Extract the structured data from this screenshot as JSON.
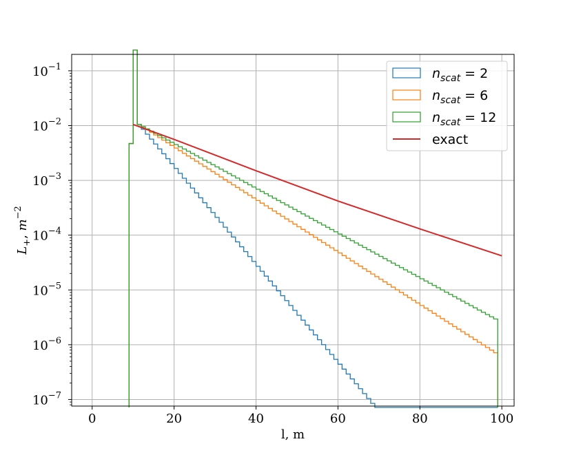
{
  "chart_data": {
    "type": "line",
    "subtype": "step-histogram",
    "title": "",
    "xlabel": "l, m",
    "ylabel": "L+, m−2",
    "ylabel_parts": {
      "main": "L",
      "sub": "+",
      "rest": ", m",
      "sup": "−2"
    },
    "xlim": [
      -5,
      103
    ],
    "ylim_log10": [
      -7.12,
      -0.7
    ],
    "yscale": "log",
    "grid": true,
    "x_ticks": [
      0,
      20,
      40,
      60,
      80,
      100
    ],
    "x_tick_labels": [
      "0",
      "20",
      "40",
      "60",
      "80",
      "100"
    ],
    "y_ticks": [
      0.1,
      0.01,
      0.001,
      0.0001,
      1e-05,
      1e-06,
      1e-07
    ],
    "y_tick_labels": [
      {
        "base": "10",
        "exp": "−1"
      },
      {
        "base": "10",
        "exp": "−2"
      },
      {
        "base": "10",
        "exp": "−3"
      },
      {
        "base": "10",
        "exp": "−4"
      },
      {
        "base": "10",
        "exp": "−5"
      },
      {
        "base": "10",
        "exp": "−6"
      },
      {
        "base": "10",
        "exp": "−7"
      }
    ],
    "legend_placement": "upper-right",
    "bins": {
      "start": 9.0,
      "end": 100.0,
      "width": 1.0
    },
    "series": [
      {
        "name": "n_scat = 2",
        "legend": {
          "var": "n",
          "sub": "scat",
          "eq": " = 2"
        },
        "color": "#1f77b4",
        "style": "step",
        "spike": [
          {
            "x0": 9,
            "x1": 10,
            "y": 0.0047
          },
          {
            "x0": 10,
            "x1": 11,
            "y": 0.24
          }
        ],
        "start_y": 0.0105,
        "decay_per_m": 0.2057,
        "tail_end_x": 99
      },
      {
        "name": "n_scat = 6",
        "legend": {
          "var": "n",
          "sub": "scat",
          "eq": " = 6"
        },
        "color": "#ff7f0e",
        "style": "step",
        "spike": [
          {
            "x0": 9,
            "x1": 10,
            "y": 0.0047
          },
          {
            "x0": 10,
            "x1": 11,
            "y": 0.24
          }
        ],
        "start_y": 0.0105,
        "decay_per_m": 0.1103,
        "tail_end_x": 99
      },
      {
        "name": "n_scat = 12",
        "legend": {
          "var": "n",
          "sub": "scat",
          "eq": " = 12"
        },
        "color": "#2ca02c",
        "style": "step",
        "spike": [
          {
            "x0": 9,
            "x1": 10,
            "y": 0.0047
          },
          {
            "x0": 10,
            "x1": 11,
            "y": 0.24
          }
        ],
        "start_y": 0.0105,
        "decay_per_m": 0.094,
        "tail_end_x": 99
      },
      {
        "name": "exact",
        "legend": {
          "text": "exact"
        },
        "color": "#d62728",
        "style": "line",
        "x": [
          10,
          20,
          40,
          60,
          80,
          100
        ],
        "y": [
          0.0105,
          0.0056,
          0.0015,
          0.00042,
          0.00013,
          4.2e-05
        ]
      }
    ]
  }
}
